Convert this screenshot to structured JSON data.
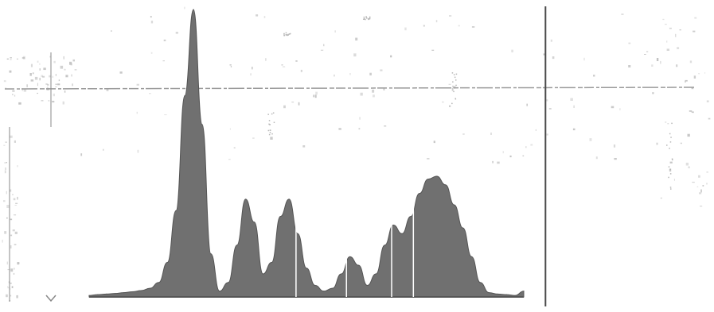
{
  "icons": {
    "corner": "chevron-down-icon"
  },
  "colors": {
    "background": "#ffffff",
    "fill": "#707070",
    "stroke": "#555555",
    "cursor": "#4a4a4a",
    "grid": "#9a9a9a"
  },
  "chart_data": {
    "type": "area",
    "title": "",
    "xlabel": "",
    "ylabel": "",
    "grid": false,
    "legend": "none",
    "xlim": [
      0,
      100
    ],
    "ylim": [
      0,
      100
    ],
    "x": [
      0,
      2,
      4,
      6,
      8,
      10,
      12,
      14,
      16,
      18,
      20,
      22,
      24,
      26,
      28,
      30,
      32,
      34,
      36,
      38,
      40,
      42,
      44,
      46,
      48,
      50,
      52,
      54,
      56,
      58,
      60,
      62,
      64,
      66,
      68,
      70,
      72,
      74,
      76,
      78,
      80,
      82,
      84,
      86,
      88,
      90,
      92,
      94,
      96,
      98,
      100
    ],
    "series": [
      {
        "values": [
          0.5,
          0.8,
          1.0,
          1.2,
          1.5,
          1.8,
          2.2,
          3.0,
          5.0,
          12.0,
          30.0,
          70.0,
          100.0,
          60.0,
          15.0,
          2.0,
          5.0,
          18.0,
          34.0,
          26.0,
          8.0,
          12.0,
          28.0,
          34.0,
          22.0,
          10.0,
          4.0,
          2.0,
          3.0,
          8.0,
          14.0,
          11.0,
          4.0,
          8.0,
          18.0,
          25.0,
          22.0,
          28.0,
          36.0,
          41.0,
          42.0,
          39.0,
          32.0,
          24.0,
          14.0,
          5.0,
          1.5,
          1.0,
          0.8,
          0.5,
          2.0
        ]
      }
    ],
    "cursor_x": 105,
    "sections": [
      47.6,
      59.2,
      69.6,
      74.6
    ]
  }
}
